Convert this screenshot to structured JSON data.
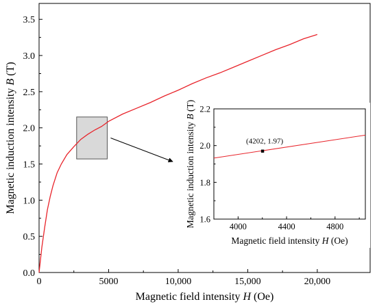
{
  "chart_data": [
    {
      "type": "line",
      "xlabel": "Magnetic field intensity",
      "xsym": "H",
      "xunit": "(Oe)",
      "ylabel": "Magnetic induction intensity",
      "ysym": "B",
      "yunit": "(T)",
      "xlim": [
        0,
        23800
      ],
      "ylim": [
        0,
        3.72
      ],
      "xticks": [
        0,
        5000,
        10000,
        15000,
        20000
      ],
      "xtick_labels": [
        "0",
        "5000",
        "10,000",
        "15,000",
        "20,000"
      ],
      "yticks": [
        0.0,
        0.5,
        1.0,
        1.5,
        2.0,
        2.5,
        3.0,
        3.5
      ],
      "ytick_labels": [
        "0.0",
        "0.5",
        "1.0",
        "1.5",
        "2.0",
        "2.5",
        "3.0",
        "3.5"
      ],
      "zoom_box": {
        "x": [
          2700,
          4900
        ],
        "y": [
          1.57,
          2.15
        ]
      },
      "series": [
        {
          "color": "#e8232a",
          "x": [
            0,
            200,
            400,
            600,
            800,
            1000,
            1300,
            1600,
            2000,
            2500,
            3000,
            3500,
            4000,
            4500,
            5000,
            6000,
            7000,
            8000,
            9000,
            10000,
            11000,
            12000,
            13000,
            14000,
            15000,
            16000,
            17000,
            18000,
            19000,
            20000
          ],
          "y": [
            0.0,
            0.35,
            0.62,
            0.87,
            1.05,
            1.2,
            1.38,
            1.5,
            1.63,
            1.74,
            1.84,
            1.91,
            1.97,
            2.02,
            2.09,
            2.19,
            2.27,
            2.35,
            2.44,
            2.52,
            2.61,
            2.69,
            2.76,
            2.84,
            2.92,
            3.0,
            3.08,
            3.15,
            3.23,
            3.29
          ]
        }
      ]
    },
    {
      "type": "line",
      "xlabel": "Magnetic field intensity",
      "xsym": "H",
      "xunit": "(Oe)",
      "ylabel": "Magnetic induction intensity",
      "ysym": "B",
      "yunit": "(T)",
      "xlim": [
        3800,
        5050
      ],
      "ylim": [
        1.6,
        2.2
      ],
      "xticks": [
        4000,
        4400,
        4800
      ],
      "xtick_labels": [
        "4000",
        "4400",
        "4800"
      ],
      "yticks": [
        1.6,
        1.8,
        2.0,
        2.2
      ],
      "ytick_labels": [
        "1.6",
        "1.8",
        "2.0",
        "2.2"
      ],
      "annotation": {
        "x": 4202,
        "y": 1.97,
        "label": "(4202, 1.97)"
      },
      "series": [
        {
          "color": "#e8232a",
          "x": [
            3800,
            5050
          ],
          "y": [
            1.932,
            2.057
          ]
        }
      ]
    }
  ]
}
